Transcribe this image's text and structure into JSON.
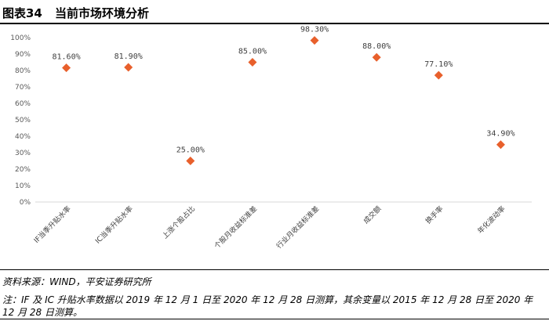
{
  "figure": {
    "label": "图表34",
    "title": "当前市场环境分析"
  },
  "chart_data": {
    "type": "scatter",
    "title": "",
    "xlabel": "",
    "ylabel": "",
    "ylim": [
      0,
      100
    ],
    "yticks": [
      "0%",
      "10%",
      "20%",
      "30%",
      "40%",
      "50%",
      "60%",
      "70%",
      "80%",
      "90%",
      "100%"
    ],
    "grid": false,
    "legend": "none",
    "marker": "diamond",
    "marker_color": "#E8602C",
    "categories": [
      "IF当季升贴水率",
      "IC当季升贴水率",
      "上涨个股占比",
      "个股月收益标准差",
      "行业月收益标准差",
      "成交额",
      "换手率",
      "年化波动率"
    ],
    "values": [
      81.6,
      81.9,
      25.0,
      85.0,
      98.3,
      88.0,
      77.1,
      34.9
    ],
    "data_labels": [
      "81.60%",
      "81.90%",
      "25.00%",
      "85.00%",
      "98.30%",
      "88.00%",
      "77.10%",
      "34.90%"
    ]
  },
  "footer": {
    "source": "资料来源：WIND，平安证券研究所",
    "note": "注：IF 及 IC 升贴水率数据以 2019 年 12 月 1 日至 2020 年 12 月 28 日测算，其余变量以 2015 年 12 月 28 日至 2020 年 12 月 28 日测算。"
  }
}
